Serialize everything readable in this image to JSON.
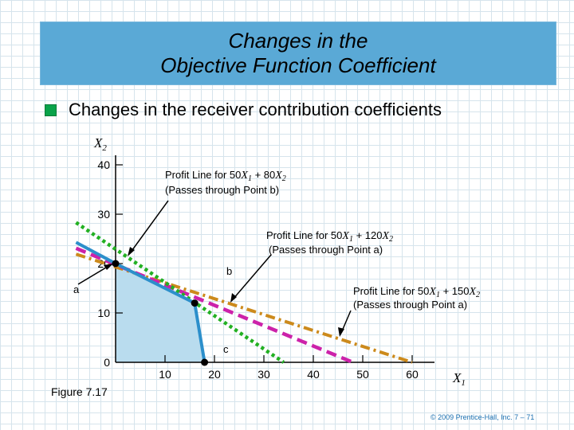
{
  "title": {
    "line1": "Changes in the",
    "line2": "Objective Function Coefficient"
  },
  "bullet_text": "Changes in the receiver contribution coefficients",
  "figure_label": "Figure 7.17",
  "copyright": "© 2009 Prentice-Hall, Inc.  7 – 71",
  "colors": {
    "feasible_region": "#b9dcee",
    "boundary": "#2c8fcb",
    "line_80": "#22b022",
    "line_120": "#cc22aa",
    "line_150": "#cc8a1c",
    "point": "#000000"
  },
  "axes": {
    "y_var": "X",
    "y_sub": "2",
    "x_var": "X",
    "x_sub": "1",
    "y_ticks": [
      "0",
      "10",
      "20",
      "30",
      "40"
    ],
    "x_ticks": [
      "10",
      "20",
      "30",
      "40",
      "50",
      "60"
    ],
    "xlim": [
      0,
      70
    ],
    "ylim": [
      0,
      45
    ]
  },
  "region": [
    [
      0,
      0
    ],
    [
      0,
      20
    ],
    [
      16,
      12
    ],
    [
      18,
      0
    ]
  ],
  "points": [
    {
      "name": "a",
      "x": 0,
      "y": 20
    },
    {
      "name": "b",
      "x": 16,
      "y": 12
    },
    {
      "name": "c",
      "x": 18,
      "y": 0
    }
  ],
  "profit_lines": [
    {
      "id": "line_80",
      "from": [
        -8,
        28.3
      ],
      "to": [
        34,
        0
      ],
      "style": "green-dotted",
      "label_pre": "Profit Line for 50",
      "v1": "X",
      "s1": "1",
      "label_mid": " + 80",
      "v2": "X",
      "s2": "2",
      "label_line2": "(Passes through Point b)"
    },
    {
      "id": "line_120",
      "from": [
        -8,
        23.1
      ],
      "to": [
        48,
        0
      ],
      "style": "magenta-dashed",
      "label_pre": "Profit Line for 50",
      "v1": "X",
      "s1": "1",
      "label_mid": " + 120",
      "v2": "X",
      "s2": "2",
      "label_line2": "(Passes through Point a)"
    },
    {
      "id": "line_150",
      "from": [
        -8,
        21.9
      ],
      "to": [
        60,
        0
      ],
      "style": "orange-dashdot",
      "label_pre": "Profit Line for 50",
      "v1": "X",
      "s1": "1",
      "label_mid": " + 150",
      "v2": "X",
      "s2": "2",
      "label_line2": "(Passes through Point a)"
    }
  ]
}
